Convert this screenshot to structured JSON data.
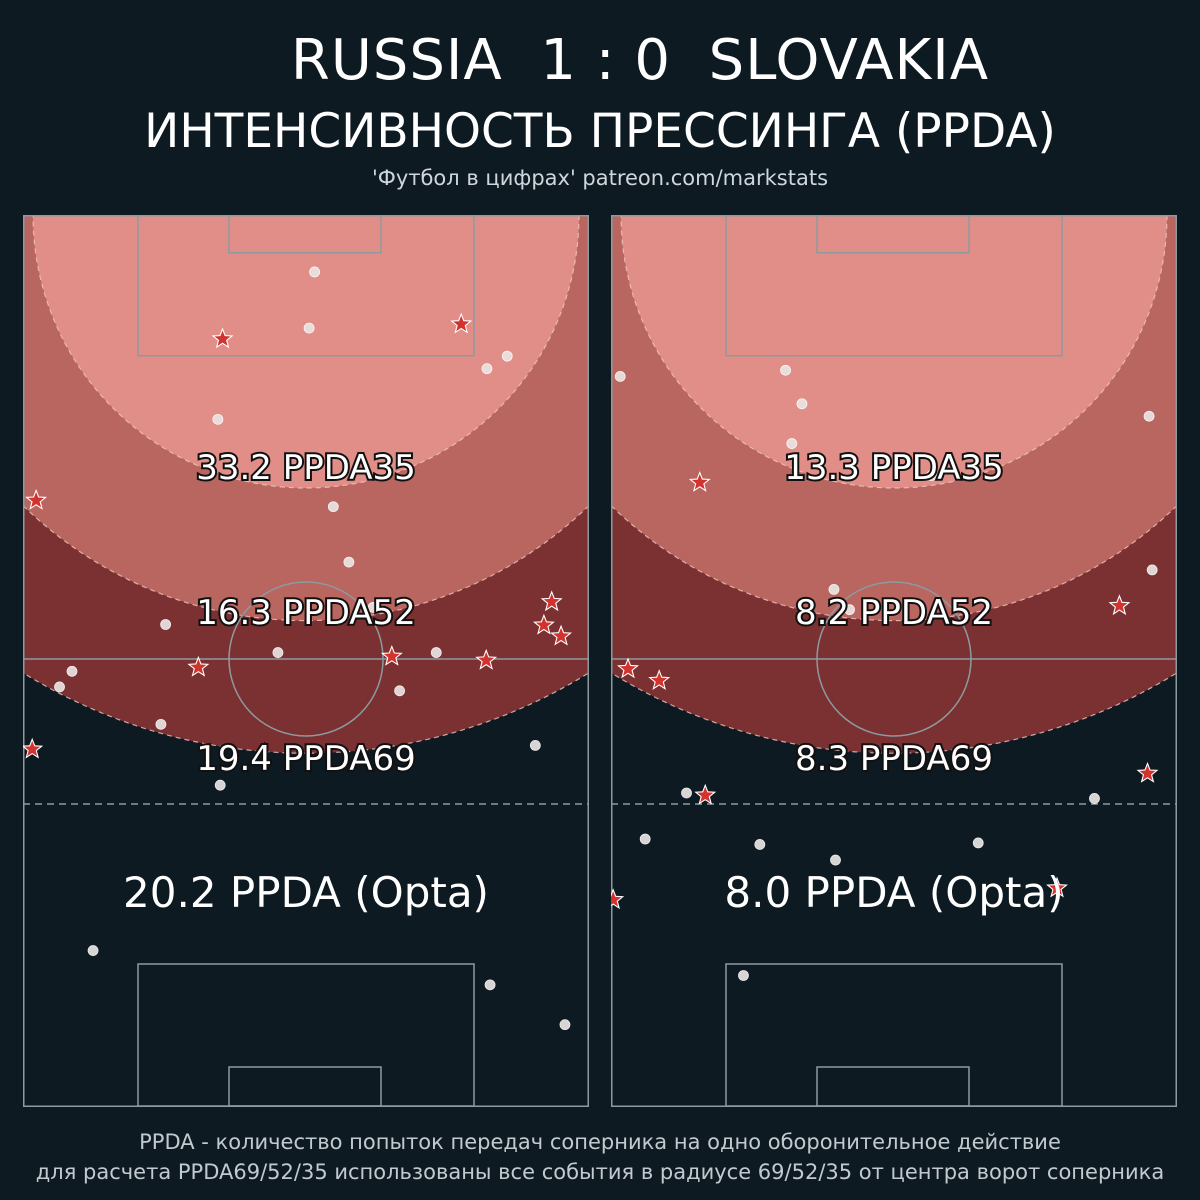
{
  "header": {
    "match": "RUSSIA  1 : 0  SLOVAKIA",
    "subtitle": "ИНТЕНСИВНОСТЬ ПРЕССИНГА (PPDA)",
    "source": "'Футбол в цифрах' patreon.com/markstats"
  },
  "footer": {
    "line1": "PPDA - количество попыток передач соперника на одно оборонительное действие",
    "line2": "для расчета PPDA69/52/35 использованы все события в радиусе 69/52/35 от центра ворот соперника"
  },
  "colors": {
    "background": "#0e1a22",
    "zone35": "#e08e87",
    "zone52": "#b96560",
    "zone69": "#7b3031",
    "dot": "#e9e4e2",
    "star": "#d2332e",
    "pitch_line": "#8d9aa0"
  },
  "chart_data": [
    {
      "type": "scatter",
      "team": "RUSSIA",
      "labels": {
        "ppda35": "33.2 PPDA35",
        "ppda52": "16.3 PPDA52",
        "ppda69": "19.4 PPDA69",
        "opta": "20.2 PPDA (Opta)"
      },
      "ppda": {
        "ppda35": 33.2,
        "ppda52": 16.3,
        "ppda69": 19.4,
        "opta": 20.2
      },
      "radii": [
        35,
        52,
        69
      ],
      "dots": [
        [
          -27.3,
          94.3
        ],
        [
          33.2,
          103.8
        ],
        [
          23.6,
          98.7
        ],
        [
          -11.0,
          73.1
        ],
        [
          12.0,
          61.0
        ],
        [
          -31.6,
          60.5
        ],
        [
          -30.0,
          58.5
        ],
        [
          -3.6,
          56.1
        ],
        [
          16.7,
          56.1
        ],
        [
          -18.0,
          52.5
        ],
        [
          8.6,
          50.3
        ],
        [
          5.5,
          44.5
        ],
        [
          3.5,
          37.4
        ],
        [
          -11.3,
          26.2
        ],
        [
          25.8,
          18.1
        ],
        [
          0.4,
          14.5
        ],
        [
          1.1,
          7.3
        ],
        [
          23.2,
          19.7
        ],
        [
          29.4,
          68.0
        ],
        [
          -18.6,
          65.3
        ]
      ],
      "stars": [
        [
          -34.6,
          36.6
        ],
        [
          11.0,
          56.6
        ],
        [
          -13.8,
          58.0
        ],
        [
          -35.1,
          68.5
        ],
        [
          31.5,
          49.6
        ],
        [
          30.5,
          52.6
        ],
        [
          32.7,
          54.0
        ],
        [
          -10.7,
          15.9
        ],
        [
          19.9,
          14.0
        ],
        [
          23.1,
          57.1
        ]
      ]
    },
    {
      "type": "scatter",
      "team": "SLOVAKIA",
      "labels": {
        "ppda35": "13.3 PPDA35",
        "ppda52": "8.2 PPDA52",
        "ppda69": "8.3 PPDA69",
        "opta": "8.0 PPDA (Opta)"
      },
      "ppda": {
        "ppda35": 13.3,
        "ppda52": 8.2,
        "ppda69": 8.3,
        "opta": 8.0
      },
      "radii": [
        35,
        52,
        69
      ],
      "dots": [
        [
          -19.3,
          97.5
        ],
        [
          -17.2,
          80.7
        ],
        [
          -31.9,
          80.0
        ],
        [
          -26.6,
          74.1
        ],
        [
          -7.5,
          82.7
        ],
        [
          10.8,
          80.5
        ],
        [
          25.7,
          74.8
        ],
        [
          -5.7,
          50.6
        ],
        [
          -7.7,
          48.0
        ],
        [
          -13.1,
          29.3
        ],
        [
          -11.8,
          24.2
        ],
        [
          4.8,
          33.4
        ],
        [
          33.1,
          45.5
        ],
        [
          -35.1,
          20.7
        ],
        [
          -13.9,
          19.9
        ],
        [
          32.7,
          25.8
        ]
      ],
      "stars": [
        [
          -36.0,
          87.8
        ],
        [
          -24.2,
          74.4
        ],
        [
          20.9,
          86.3
        ],
        [
          32.5,
          71.6
        ],
        [
          -30.1,
          59.7
        ],
        [
          -34.1,
          58.2
        ],
        [
          28.9,
          50.1
        ],
        [
          -24.9,
          34.3
        ]
      ]
    }
  ]
}
